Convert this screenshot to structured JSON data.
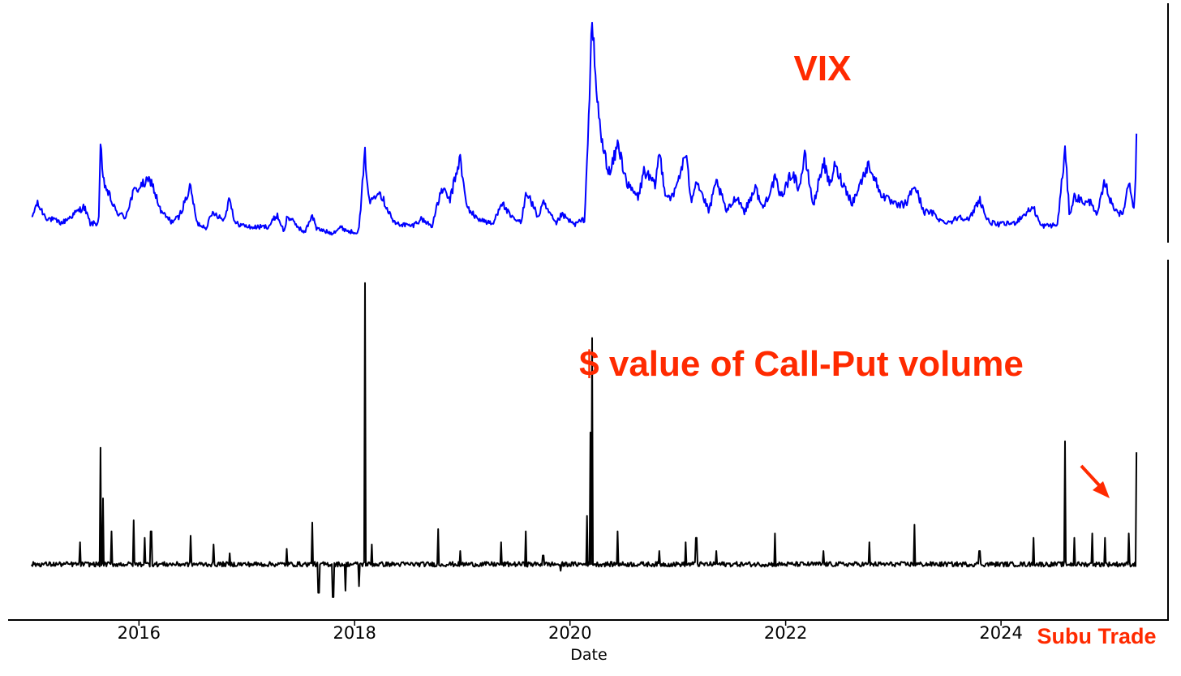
{
  "chart_data": [
    {
      "type": "line",
      "panel": "top",
      "series": [
        {
          "name": "VIX",
          "color": "#0000ff"
        }
      ],
      "annotation": {
        "text": "VIX",
        "color": "#ff2a00"
      },
      "xlabel": "",
      "ylabel": "",
      "y_ticks_shown": false,
      "grid": false,
      "x_anchor_points": [
        [
          "2015-01-02",
          14.5
        ],
        [
          "2015-01-20",
          20
        ],
        [
          "2015-02-20",
          15
        ],
        [
          "2015-04-15",
          13
        ],
        [
          "2015-06-29",
          18.8
        ],
        [
          "2015-07-20",
          12.8
        ],
        [
          "2015-08-17",
          13
        ],
        [
          "2015-08-24",
          40
        ],
        [
          "2015-09-01",
          28
        ],
        [
          "2015-10-15",
          17
        ],
        [
          "2015-11-15",
          15
        ],
        [
          "2015-12-14",
          24
        ],
        [
          "2016-01-20",
          27
        ],
        [
          "2016-02-11",
          28
        ],
        [
          "2016-03-15",
          17
        ],
        [
          "2016-04-20",
          13.5
        ],
        [
          "2016-05-15",
          15
        ],
        [
          "2016-06-24",
          25.8
        ],
        [
          "2016-07-15",
          13
        ],
        [
          "2016-08-15",
          11.5
        ],
        [
          "2016-09-09",
          17
        ],
        [
          "2016-10-15",
          14
        ],
        [
          "2016-11-04",
          22.5
        ],
        [
          "2016-11-20",
          13
        ],
        [
          "2017-01-15",
          11.5
        ],
        [
          "2017-03-15",
          11.8
        ],
        [
          "2017-04-13",
          15.9
        ],
        [
          "2017-05-08",
          9.8
        ],
        [
          "2017-05-17",
          15.6
        ],
        [
          "2017-07-15",
          9.5
        ],
        [
          "2017-08-10",
          16
        ],
        [
          "2017-08-25",
          11
        ],
        [
          "2017-10-15",
          9.5
        ],
        [
          "2017-11-15",
          11.5
        ],
        [
          "2017-12-15",
          10
        ],
        [
          "2018-01-15",
          10
        ],
        [
          "2018-02-05",
          37.3
        ],
        [
          "2018-02-20",
          20
        ],
        [
          "2018-03-23",
          24.9
        ],
        [
          "2018-05-15",
          13
        ],
        [
          "2018-07-15",
          12
        ],
        [
          "2018-08-15",
          14.5
        ],
        [
          "2018-09-20",
          12
        ],
        [
          "2018-10-24",
          25.2
        ],
        [
          "2018-11-20",
          21
        ],
        [
          "2018-12-24",
          36
        ],
        [
          "2019-01-15",
          19
        ],
        [
          "2019-02-15",
          15
        ],
        [
          "2019-04-15",
          12.5
        ],
        [
          "2019-05-13",
          20.5
        ],
        [
          "2019-06-15",
          15
        ],
        [
          "2019-07-20",
          13
        ],
        [
          "2019-08-05",
          24.6
        ],
        [
          "2019-09-15",
          15
        ],
        [
          "2019-10-02",
          20
        ],
        [
          "2019-11-15",
          12.5
        ],
        [
          "2019-12-03",
          16
        ],
        [
          "2020-01-15",
          12.5
        ],
        [
          "2020-02-20",
          14.4
        ],
        [
          "2020-03-16",
          82.7
        ],
        [
          "2020-04-01",
          57
        ],
        [
          "2020-04-20",
          40
        ],
        [
          "2020-05-15",
          30
        ],
        [
          "2020-06-11",
          40.8
        ],
        [
          "2020-07-15",
          26
        ],
        [
          "2020-08-20",
          22
        ],
        [
          "2020-09-08",
          31.5
        ],
        [
          "2020-10-15",
          26
        ],
        [
          "2020-10-30",
          38
        ],
        [
          "2020-11-20",
          23
        ],
        [
          "2020-12-15",
          22
        ],
        [
          "2021-01-27",
          37.2
        ],
        [
          "2021-02-15",
          21
        ],
        [
          "2021-03-04",
          28.5
        ],
        [
          "2021-04-15",
          17
        ],
        [
          "2021-05-12",
          27.6
        ],
        [
          "2021-06-15",
          17
        ],
        [
          "2021-07-19",
          22.5
        ],
        [
          "2021-08-15",
          17
        ],
        [
          "2021-09-20",
          25.7
        ],
        [
          "2021-10-15",
          18
        ],
        [
          "2021-11-26",
          28.6
        ],
        [
          "2021-12-15",
          22
        ],
        [
          "2022-01-24",
          31
        ],
        [
          "2022-02-15",
          25
        ],
        [
          "2022-03-07",
          36.5
        ],
        [
          "2022-04-05",
          19
        ],
        [
          "2022-05-09",
          34.8
        ],
        [
          "2022-05-30",
          26
        ],
        [
          "2022-06-16",
          33
        ],
        [
          "2022-08-15",
          20
        ],
        [
          "2022-09-30",
          31.6
        ],
        [
          "2022-10-12",
          33.6
        ],
        [
          "2022-11-15",
          24
        ],
        [
          "2022-12-15",
          21
        ],
        [
          "2023-01-15",
          19
        ],
        [
          "2023-02-15",
          20
        ],
        [
          "2023-03-13",
          26.5
        ],
        [
          "2023-04-15",
          17
        ],
        [
          "2023-05-15",
          16.5
        ],
        [
          "2023-06-15",
          13.5
        ],
        [
          "2023-07-15",
          13.5
        ],
        [
          "2023-08-15",
          15.5
        ],
        [
          "2023-09-15",
          14
        ],
        [
          "2023-10-20",
          21.7
        ],
        [
          "2023-11-15",
          14
        ],
        [
          "2023-12-15",
          12.5
        ],
        [
          "2024-02-15",
          13
        ],
        [
          "2024-04-19",
          18.7
        ],
        [
          "2024-05-15",
          12
        ],
        [
          "2024-07-10",
          12.3
        ],
        [
          "2024-08-05",
          38.6
        ],
        [
          "2024-08-20",
          16
        ],
        [
          "2024-09-06",
          22.4
        ],
        [
          "2024-10-15",
          20
        ],
        [
          "2024-11-05",
          20.5
        ],
        [
          "2024-11-20",
          15
        ],
        [
          "2024-12-18",
          27.6
        ],
        [
          "2025-01-10",
          19.5
        ],
        [
          "2025-02-15",
          15.5
        ],
        [
          "2025-03-10",
          27.9
        ],
        [
          "2025-03-26",
          18.5
        ],
        [
          "2025-04-03",
          30
        ],
        [
          "2025-04-04",
          45.3
        ]
      ],
      "ylim": [
        9,
        85
      ]
    },
    {
      "type": "line",
      "panel": "bottom",
      "series": [
        {
          "name": "$ value of Call-Put volume",
          "color": "#000000"
        }
      ],
      "annotation": {
        "text": "$ value of Call-Put volume",
        "color": "#ff2a00"
      },
      "xlabel": "Date",
      "ylabel": "",
      "y_ticks_shown": false,
      "grid": false,
      "baseline": 0,
      "spikes": [
        [
          "2015-06-15",
          1.0
        ],
        [
          "2015-08-24",
          5.3
        ],
        [
          "2015-09-01",
          3.0
        ],
        [
          "2015-10-01",
          1.5
        ],
        [
          "2015-12-14",
          2.0
        ],
        [
          "2016-01-20",
          1.2
        ],
        [
          "2016-02-11",
          1.5
        ],
        [
          "2016-06-24",
          1.3
        ],
        [
          "2016-09-09",
          0.9
        ],
        [
          "2016-11-04",
          0.5
        ],
        [
          "2017-05-17",
          0.7
        ],
        [
          "2017-08-10",
          1.9
        ],
        [
          "2017-09-01",
          -1.3
        ],
        [
          "2017-10-20",
          -1.5
        ],
        [
          "2017-12-01",
          -1.2
        ],
        [
          "2018-01-15",
          -1.0
        ],
        [
          "2018-02-05",
          12.8
        ],
        [
          "2018-03-01",
          0.9
        ],
        [
          "2018-10-10",
          1.6
        ],
        [
          "2018-12-24",
          0.6
        ],
        [
          "2019-05-13",
          1.0
        ],
        [
          "2019-08-05",
          1.5
        ],
        [
          "2019-10-02",
          0.4
        ],
        [
          "2019-12-01",
          -0.3
        ],
        [
          "2020-02-28",
          2.2
        ],
        [
          "2020-03-09",
          6.0
        ],
        [
          "2020-03-16",
          10.3
        ],
        [
          "2020-06-11",
          1.5
        ],
        [
          "2020-10-30",
          0.6
        ],
        [
          "2021-01-27",
          1.0
        ],
        [
          "2021-03-04",
          1.2
        ],
        [
          "2021-05-12",
          0.6
        ],
        [
          "2021-11-26",
          1.4
        ],
        [
          "2022-05-09",
          0.6
        ],
        [
          "2022-10-12",
          1.0
        ],
        [
          "2023-03-13",
          1.8
        ],
        [
          "2023-10-20",
          0.6
        ],
        [
          "2024-04-19",
          1.2
        ],
        [
          "2024-08-05",
          5.6
        ],
        [
          "2024-09-06",
          1.2
        ],
        [
          "2024-11-05",
          1.4
        ],
        [
          "2024-12-18",
          1.2
        ],
        [
          "2025-03-10",
          1.4
        ],
        [
          "2025-04-04",
          5.1
        ]
      ],
      "ylim": [
        -1.8,
        13.2
      ]
    }
  ],
  "x_axis": {
    "label": "Date",
    "range": [
      "2014-10-20",
      "2025-07-20"
    ],
    "ticks": [
      "2016",
      "2018",
      "2020",
      "2022",
      "2024"
    ]
  },
  "arrow": {
    "color": "#ff2a00",
    "points_to": "2025-04-04"
  },
  "watermark": {
    "text": "Subu Trade",
    "color": "#ff2a00"
  }
}
